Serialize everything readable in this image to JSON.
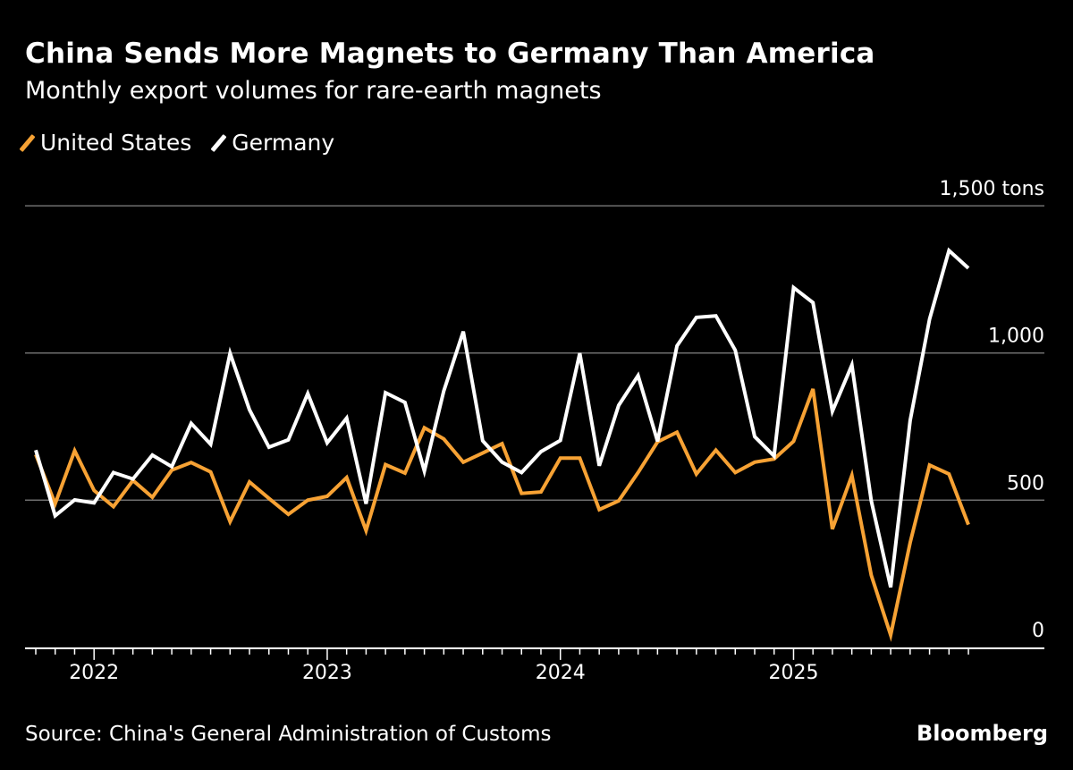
{
  "chart_data": {
    "type": "line",
    "title": "China Sends More Magnets to Germany Than America",
    "subtitle": "Monthly export volumes for rare-earth magnets",
    "ylabel": "",
    "yunit": "tons",
    "ylim": [
      0,
      1500
    ],
    "yticks": [
      0,
      500,
      1000,
      1500
    ],
    "ytick_labels": [
      "0",
      "500",
      "1,000",
      "1,500 tons"
    ],
    "xtick_labels": [
      "2022",
      "2023",
      "2024",
      "2025"
    ],
    "grid": true,
    "legend_position": "top-left",
    "x": [
      "2021-09",
      "2021-10",
      "2021-11",
      "2021-12",
      "2022-01",
      "2022-02",
      "2022-03",
      "2022-04",
      "2022-05",
      "2022-06",
      "2022-07",
      "2022-08",
      "2022-09",
      "2022-10",
      "2022-11",
      "2022-12",
      "2023-01",
      "2023-02",
      "2023-03",
      "2023-04",
      "2023-05",
      "2023-06",
      "2023-07",
      "2023-08",
      "2023-09",
      "2023-10",
      "2023-11",
      "2023-12",
      "2024-01",
      "2024-02",
      "2024-03",
      "2024-04",
      "2024-05",
      "2024-06",
      "2024-07",
      "2024-08",
      "2024-09",
      "2024-10",
      "2024-11",
      "2024-12",
      "2025-01",
      "2025-02",
      "2025-03",
      "2025-04",
      "2025-05",
      "2025-06",
      "2025-07",
      "2025-08",
      "2025-09"
    ],
    "series": [
      {
        "name": "United States",
        "color": "#F7A234",
        "values": [
          655,
          488,
          668,
          533,
          478,
          567,
          510,
          602,
          628,
          596,
          427,
          562,
          506,
          452,
          500,
          513,
          577,
          397,
          621,
          592,
          746,
          708,
          629,
          660,
          692,
          523,
          528,
          643,
          643,
          468,
          498,
          594,
          698,
          731,
          589,
          670,
          594,
          629,
          640,
          700,
          878,
          402,
          584,
          245,
          42,
          356,
          619,
          589,
          417
        ]
      },
      {
        "name": "Germany",
        "color": "#FFFFFF",
        "values": [
          670,
          447,
          501,
          491,
          594,
          572,
          653,
          614,
          761,
          690,
          999,
          807,
          680,
          705,
          862,
          695,
          779,
          488,
          865,
          832,
          599,
          871,
          1073,
          702,
          629,
          594,
          665,
          703,
          999,
          617,
          822,
          923,
          700,
          1024,
          1121,
          1126,
          1009,
          716,
          650,
          1222,
          1171,
          802,
          959,
          498,
          204,
          771,
          1115,
          1348,
          1288
        ]
      }
    ]
  },
  "footer": {
    "source": "Source: China's General Administration of Customs",
    "logo": "Bloomberg"
  },
  "colors": {
    "background": "#000000",
    "grid": "#6e6e6e",
    "axis": "#ffffff"
  }
}
